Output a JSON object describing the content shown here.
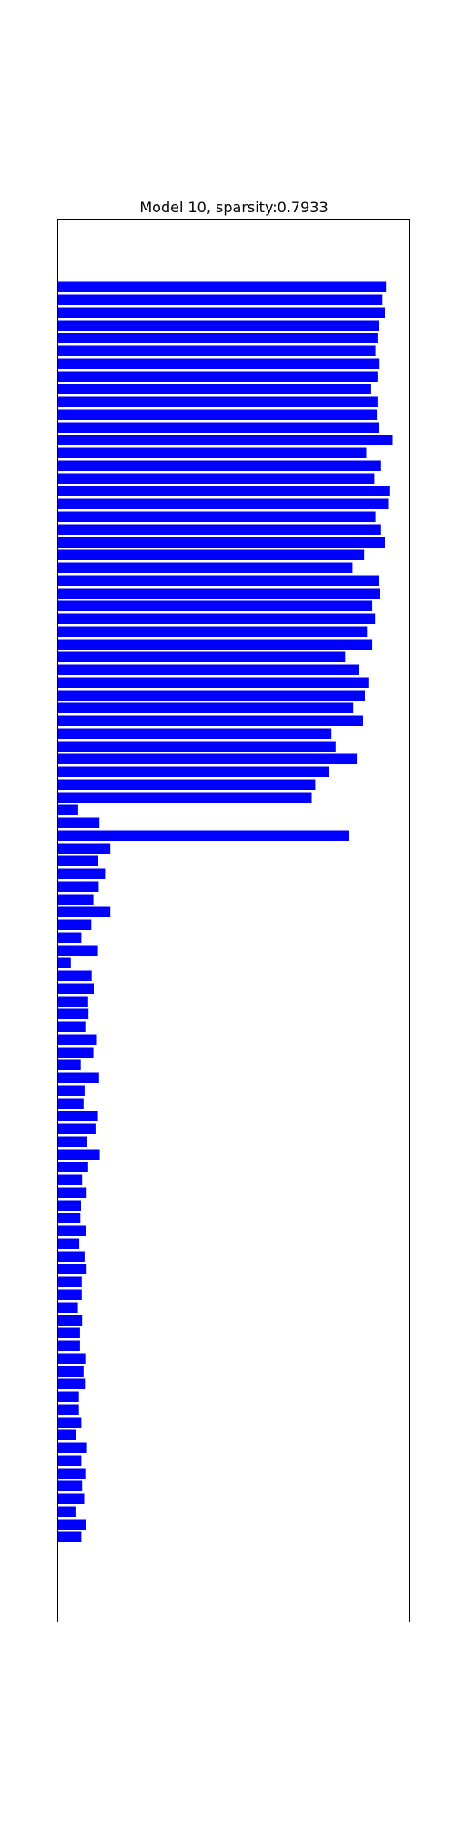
{
  "chart_data": {
    "type": "bar",
    "orientation": "horizontal",
    "title": "Model 10, sparsity:0.7933",
    "xlabel": "",
    "ylabel": "",
    "xlim": [
      0,
      1
    ],
    "grid": false,
    "legend": "none",
    "bar_color": "#0000ff",
    "values": [
      0.932,
      0.922,
      0.929,
      0.911,
      0.908,
      0.902,
      0.914,
      0.908,
      0.89,
      0.908,
      0.906,
      0.913,
      0.951,
      0.876,
      0.918,
      0.899,
      0.944,
      0.938,
      0.902,
      0.918,
      0.929,
      0.87,
      0.837,
      0.913,
      0.916,
      0.893,
      0.901,
      0.878,
      0.893,
      0.816,
      0.856,
      0.882,
      0.872,
      0.839,
      0.867,
      0.777,
      0.789,
      0.849,
      0.769,
      0.731,
      0.721,
      0.058,
      0.118,
      0.826,
      0.149,
      0.115,
      0.134,
      0.116,
      0.101,
      0.149,
      0.095,
      0.067,
      0.114,
      0.037,
      0.096,
      0.102,
      0.086,
      0.087,
      0.078,
      0.111,
      0.101,
      0.065,
      0.117,
      0.076,
      0.073,
      0.114,
      0.107,
      0.084,
      0.119,
      0.086,
      0.069,
      0.082,
      0.066,
      0.064,
      0.081,
      0.061,
      0.076,
      0.082,
      0.068,
      0.068,
      0.057,
      0.069,
      0.063,
      0.063,
      0.078,
      0.073,
      0.077,
      0.06,
      0.06,
      0.067,
      0.052,
      0.083,
      0.067,
      0.078,
      0.069,
      0.075,
      0.05,
      0.079,
      0.067
    ]
  }
}
